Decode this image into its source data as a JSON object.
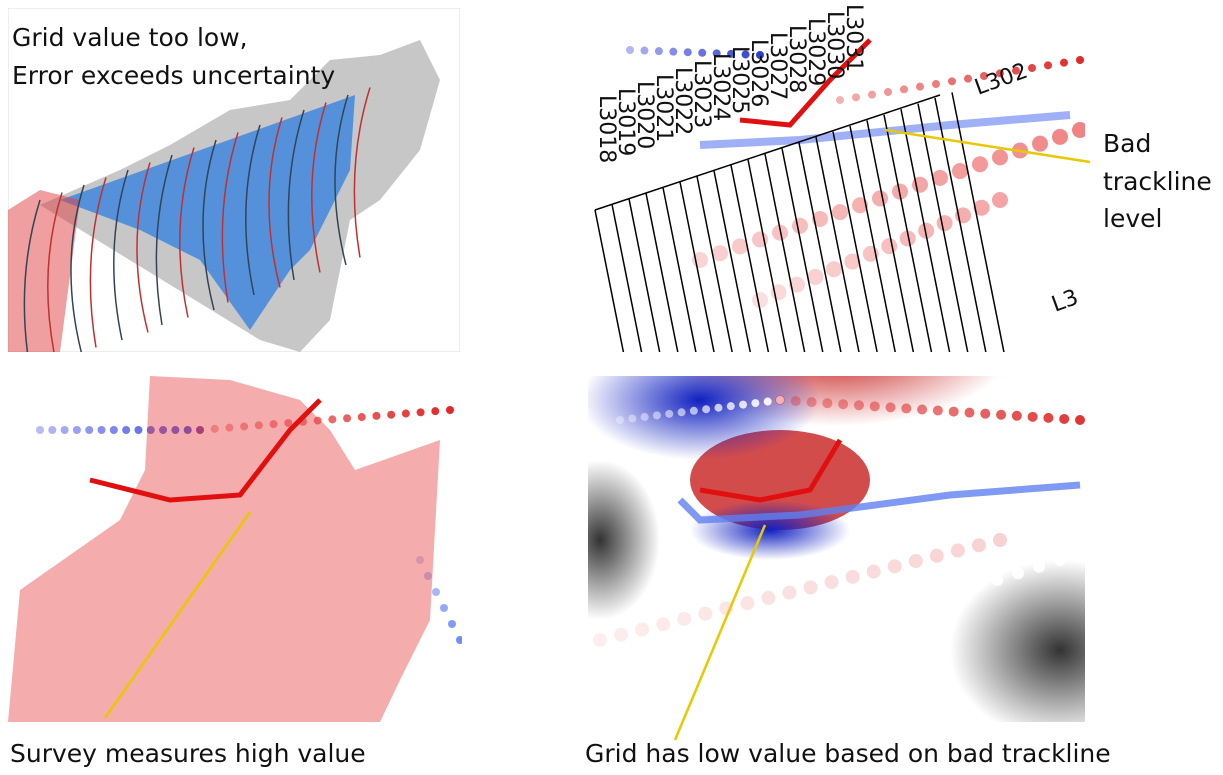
{
  "top_left": {
    "annotation": [
      "Grid value too low,",
      "Error exceeds uncertainty"
    ]
  },
  "top_right": {
    "line_labels": [
      "L3018",
      "L3019",
      "L3020",
      "L3021",
      "L3022",
      "L3023",
      "L3024",
      "L3025",
      "L3026",
      "L3027",
      "L3028",
      "L3029",
      "L3030",
      "L3031"
    ],
    "side_labels": [
      "L302",
      "L3"
    ],
    "annotation": [
      "Bad",
      "trackline",
      "level"
    ]
  },
  "bottom_left": {
    "caption": "Survey measures high value"
  },
  "bottom_right": {
    "caption": "Grid has low value based on bad trackline"
  }
}
